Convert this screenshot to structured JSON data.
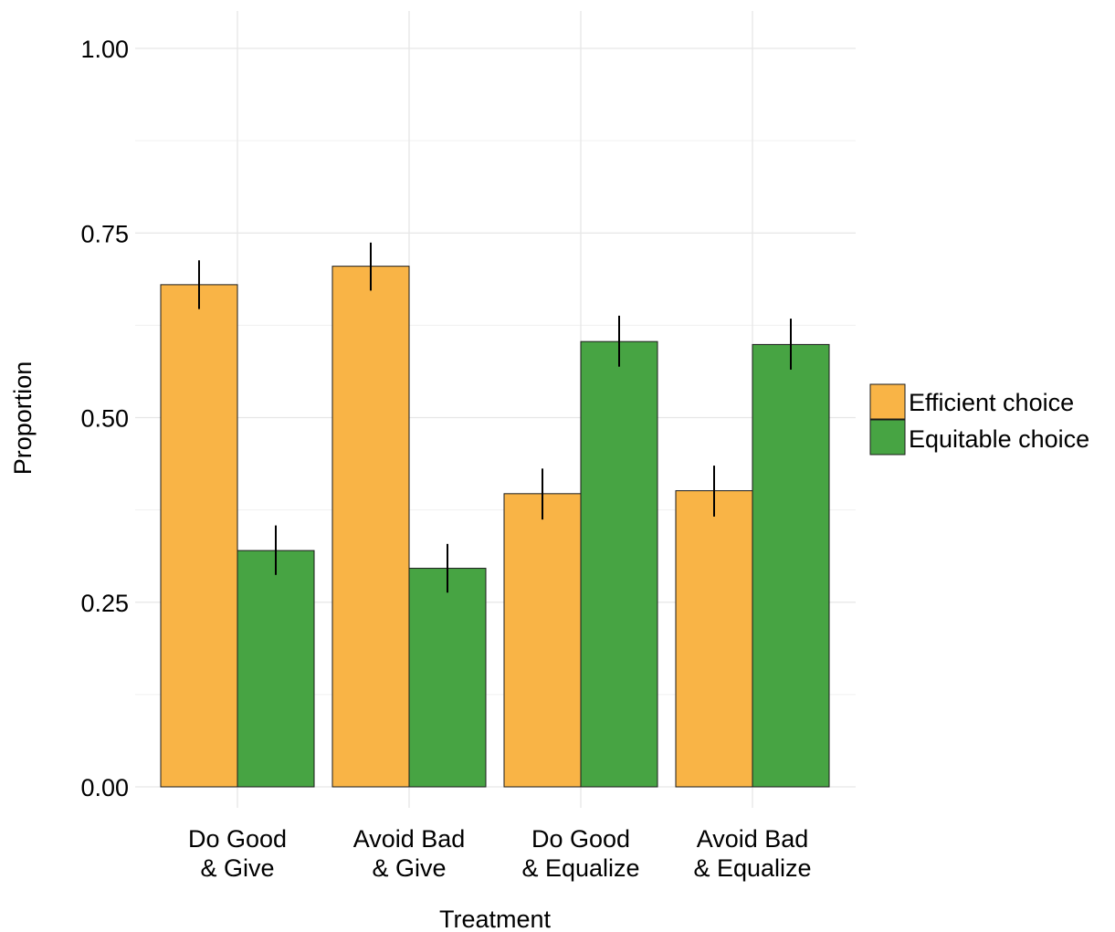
{
  "chart_data": {
    "type": "bar",
    "xlabel": "Treatment",
    "ylabel": "Proportion",
    "ylim": [
      0,
      1.0
    ],
    "yticks": [
      0.0,
      0.25,
      0.5,
      0.75,
      1.0
    ],
    "ytick_labels": [
      "0.00",
      "0.25",
      "0.50",
      "0.75",
      "1.00"
    ],
    "grid": true,
    "legend_position": "right",
    "categories": [
      [
        "Do Good",
        "& Give"
      ],
      [
        "Avoid Bad",
        "& Give"
      ],
      [
        "Do Good",
        "& Equalize"
      ],
      [
        "Avoid Bad",
        "& Equalize"
      ]
    ],
    "series": [
      {
        "name": "Efficient choice",
        "color": "#F9B446",
        "values": [
          0.68,
          0.705,
          0.397,
          0.401
        ],
        "error_low": [
          0.647,
          0.672,
          0.362,
          0.366
        ],
        "error_high": [
          0.713,
          0.737,
          0.431,
          0.435
        ]
      },
      {
        "name": "Equitable choice",
        "color": "#47A443",
        "values": [
          0.32,
          0.296,
          0.603,
          0.599
        ],
        "error_low": [
          0.287,
          0.263,
          0.569,
          0.565
        ],
        "error_high": [
          0.354,
          0.329,
          0.638,
          0.634
        ]
      }
    ]
  }
}
